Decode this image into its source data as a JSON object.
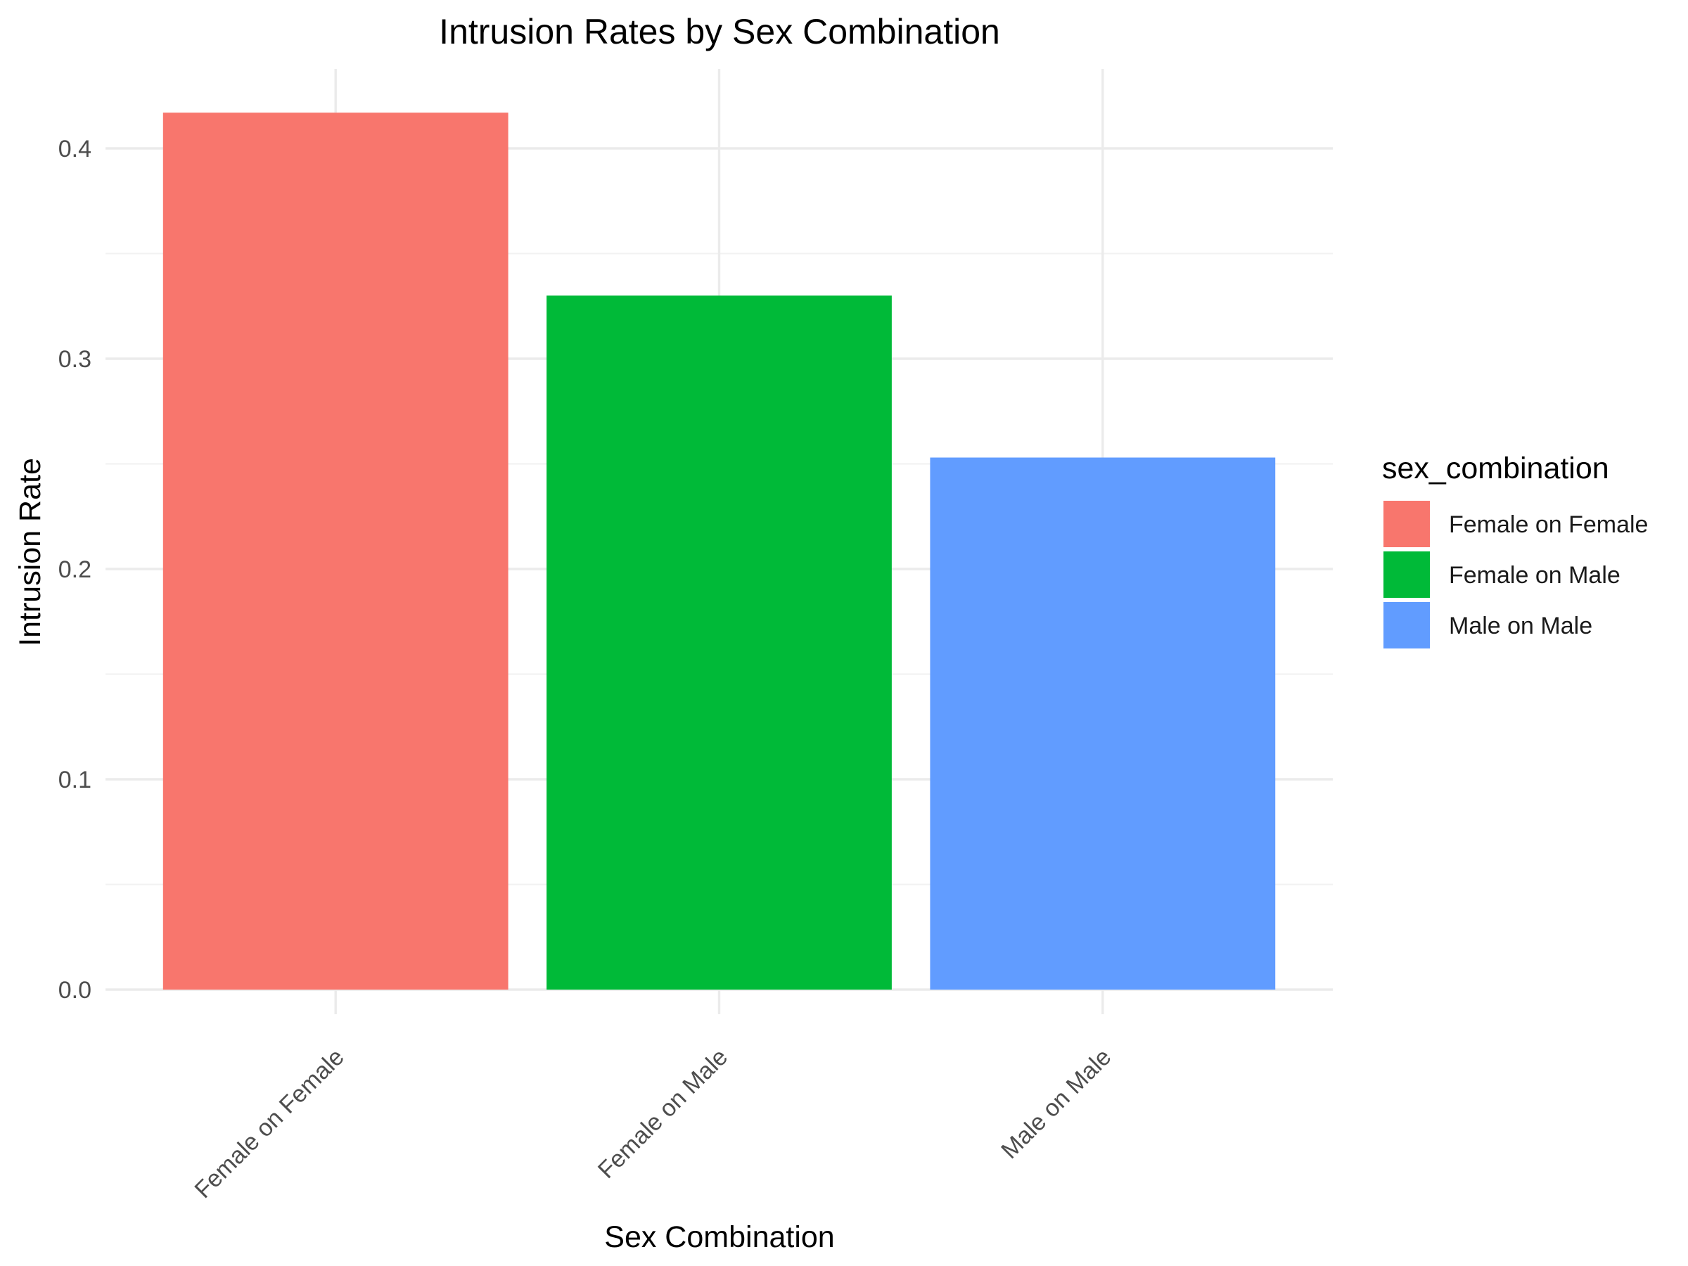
{
  "chart_data": {
    "type": "bar",
    "title": "Intrusion Rates by Sex Combination",
    "xlabel": "Sex Combination",
    "ylabel": "Intrusion Rate",
    "categories": [
      "Female on Female",
      "Female on Male",
      "Male on Male"
    ],
    "values": [
      0.417,
      0.33,
      0.253
    ],
    "colors": [
      "#F8766D",
      "#00BA38",
      "#619CFF"
    ],
    "ylim": [
      0,
      0.4
    ],
    "yticks": [
      "0.0",
      "0.1",
      "0.2",
      "0.3",
      "0.4"
    ],
    "grid": true,
    "legend": {
      "title": "sex_combination",
      "position": "right",
      "entries": [
        "Female on Female",
        "Female on Male",
        "Male on Male"
      ]
    }
  }
}
